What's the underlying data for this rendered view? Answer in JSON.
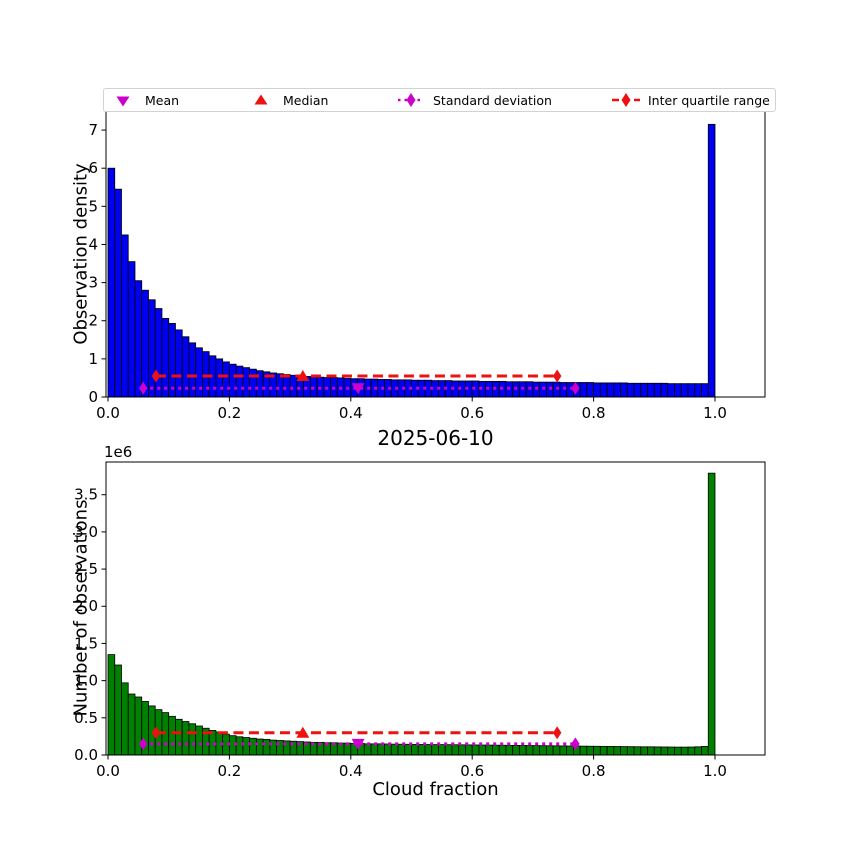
{
  "figure": {
    "title": "2025-06-10",
    "background": "#ffffff"
  },
  "colors": {
    "blue": "#0000f0",
    "green": "#008000",
    "red": "#ee1111",
    "magenta": "#cc00cc",
    "bar_edge": "#000000",
    "axis": "#000000",
    "legend_border": "#d2d2d2"
  },
  "legend": {
    "position": "top-outside",
    "items": [
      {
        "label": "Mean",
        "marker": "triangle-down",
        "color_key": "magenta"
      },
      {
        "label": "Median",
        "marker": "triangle-up",
        "color_key": "red"
      },
      {
        "label": "Standard deviation",
        "marker": "diamond-dotted-line",
        "color_key": "magenta"
      },
      {
        "label": "Inter quartile range",
        "marker": "diamond-dashed-line",
        "color_key": "red"
      }
    ]
  },
  "chart_data": [
    {
      "type": "bar",
      "name": "observation-density-histogram",
      "title": "",
      "xlabel": "",
      "ylabel": "Observation density",
      "bar_color_key": "blue",
      "grid": false,
      "n_bins": 90,
      "bin_range": [
        0,
        1
      ],
      "xlim": [
        0,
        1.082
      ],
      "ylim": [
        0,
        7.5
      ],
      "xticks": [
        0,
        0.2,
        0.4,
        0.6,
        0.8,
        1.0
      ],
      "xtick_labels": [
        "0.0",
        "0.2",
        "0.4",
        "0.6",
        "0.8",
        "1.0"
      ],
      "yticks": [
        0,
        1,
        2,
        3,
        4,
        5,
        6,
        7
      ],
      "ytick_labels": [
        "0",
        "1",
        "2",
        "3",
        "4",
        "5",
        "6",
        "7"
      ],
      "values": [
        6.0,
        5.45,
        4.25,
        3.55,
        3.05,
        2.8,
        2.55,
        2.32,
        2.06,
        1.93,
        1.76,
        1.58,
        1.42,
        1.29,
        1.19,
        1.08,
        1.0,
        0.92,
        0.86,
        0.81,
        0.77,
        0.73,
        0.69,
        0.66,
        0.63,
        0.61,
        0.59,
        0.57,
        0.56,
        0.54,
        0.53,
        0.52,
        0.51,
        0.51,
        0.5,
        0.49,
        0.48,
        0.48,
        0.47,
        0.47,
        0.46,
        0.46,
        0.45,
        0.45,
        0.45,
        0.44,
        0.44,
        0.44,
        0.43,
        0.43,
        0.43,
        0.42,
        0.42,
        0.42,
        0.42,
        0.41,
        0.41,
        0.41,
        0.41,
        0.4,
        0.4,
        0.4,
        0.4,
        0.39,
        0.39,
        0.39,
        0.39,
        0.38,
        0.38,
        0.38,
        0.38,
        0.38,
        0.37,
        0.37,
        0.37,
        0.37,
        0.37,
        0.36,
        0.36,
        0.36,
        0.36,
        0.36,
        0.36,
        0.35,
        0.35,
        0.35,
        0.35,
        0.35,
        0.35,
        7.15
      ],
      "stats": {
        "mean": 0.412,
        "median": 0.321,
        "std_low": 0.058,
        "std_high": 0.77,
        "q1": 0.079,
        "q3": 0.74,
        "std_line_y": 0.23,
        "iqr_line_y": 0.55
      }
    },
    {
      "type": "bar",
      "name": "observation-count-histogram",
      "title": "2025-06-10",
      "xlabel": "Cloud fraction",
      "ylabel": "Number of observations",
      "y_offset_label": "1e6",
      "y_unit": 1000000,
      "bar_color_key": "green",
      "grid": false,
      "n_bins": 90,
      "bin_range": [
        0,
        1
      ],
      "xlim": [
        0,
        1.082
      ],
      "ylim": [
        0,
        3.94
      ],
      "xticks": [
        0,
        0.2,
        0.4,
        0.6,
        0.8,
        1.0
      ],
      "xtick_labels": [
        "0.0",
        "0.2",
        "0.4",
        "0.6",
        "0.8",
        "1.0"
      ],
      "yticks": [
        0,
        0.5,
        1.0,
        1.5,
        2.0,
        2.5,
        3.0,
        3.5
      ],
      "ytick_labels": [
        "0.0",
        "0.5",
        "1.0",
        "1.5",
        "2.0",
        "2.5",
        "3.0",
        "3.5"
      ],
      "values": [
        1.35,
        1.21,
        0.97,
        0.82,
        0.78,
        0.72,
        0.66,
        0.61,
        0.57,
        0.52,
        0.48,
        0.45,
        0.42,
        0.39,
        0.36,
        0.33,
        0.31,
        0.28,
        0.26,
        0.245,
        0.235,
        0.225,
        0.215,
        0.21,
        0.2,
        0.195,
        0.19,
        0.185,
        0.18,
        0.175,
        0.17,
        0.17,
        0.165,
        0.165,
        0.16,
        0.16,
        0.155,
        0.155,
        0.15,
        0.15,
        0.15,
        0.148,
        0.146,
        0.145,
        0.144,
        0.143,
        0.142,
        0.141,
        0.14,
        0.14,
        0.139,
        0.138,
        0.137,
        0.136,
        0.135,
        0.134,
        0.133,
        0.132,
        0.131,
        0.13,
        0.129,
        0.128,
        0.127,
        0.126,
        0.125,
        0.124,
        0.123,
        0.122,
        0.121,
        0.12,
        0.119,
        0.118,
        0.117,
        0.116,
        0.115,
        0.114,
        0.113,
        0.112,
        0.111,
        0.11,
        0.11,
        0.109,
        0.108,
        0.107,
        0.106,
        0.106,
        0.107,
        0.11,
        0.115,
        3.79
      ],
      "stats": {
        "mean": 0.412,
        "median": 0.321,
        "std_low": 0.058,
        "std_high": 0.77,
        "q1": 0.079,
        "q3": 0.74,
        "std_line_y": 0.15,
        "iqr_line_y": 0.3
      }
    }
  ]
}
